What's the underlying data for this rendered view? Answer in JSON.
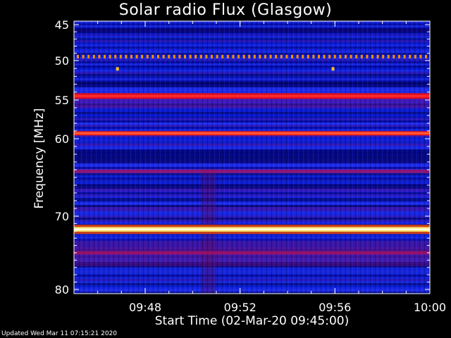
{
  "chart_data": {
    "type": "heatmap",
    "title": "Solar radio Flux (Glasgow)",
    "xlabel": "Start Time (02-Mar-20 09:45:00)",
    "ylabel": "Frequency [MHz]",
    "x_unit": "time (HH:MM)",
    "xlim": [
      "09:45",
      "10:00"
    ],
    "ylim": [
      80,
      45
    ],
    "x_ticks": [
      "09:48",
      "09:52",
      "09:56",
      "10:00"
    ],
    "y_ticks": [
      45,
      50,
      55,
      60,
      70,
      80
    ],
    "bands": [
      {
        "freq_mhz": 49.5,
        "level": "pulsed",
        "note": "periodic bright dots"
      },
      {
        "freq_mhz": 51.1,
        "level": "point",
        "times": [
          "09:46:50",
          "09:55:55"
        ]
      },
      {
        "freq_mhz": 54.5,
        "level": "high"
      },
      {
        "freq_mhz": 59.3,
        "level": "very high"
      },
      {
        "freq_mhz": 64.2,
        "level": "moderate"
      },
      {
        "freq_mhz": 71.8,
        "level": "saturated"
      },
      {
        "freq_mhz": 75.0,
        "level": "moderate"
      }
    ],
    "colormap": [
      "#000010",
      "#0010c0",
      "#3030ff",
      "#8020a0",
      "#d01020",
      "#ff4000",
      "#ffd000",
      "#ffffe0"
    ]
  },
  "footer": "Updated Wed Mar 11 07:15:21 2020"
}
